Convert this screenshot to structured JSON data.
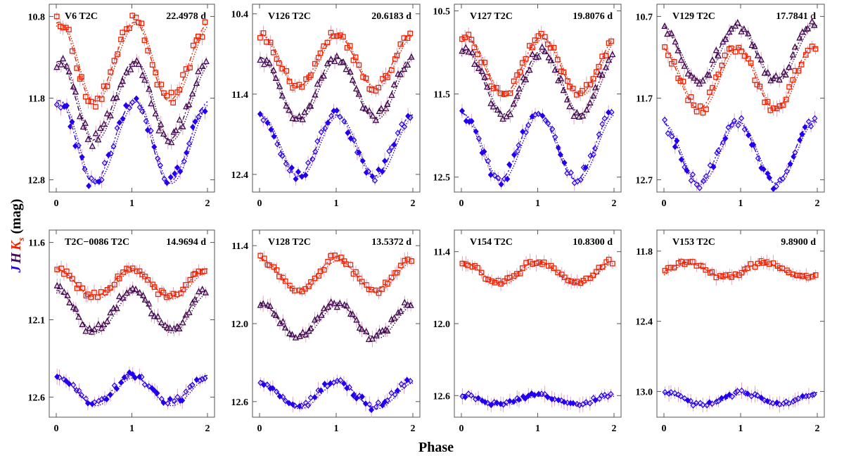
{
  "figure": {
    "xlabel": "Phase",
    "ylabel": {
      "J": "J",
      "H": "H",
      "K": "K",
      "sub": "s",
      "unit": "(mag)"
    }
  },
  "colors": {
    "J": "#2200ee",
    "H": "#3d0850",
    "K": "#ee2200",
    "frame": "#555555"
  },
  "chart_data": [
    {
      "type": "scatter",
      "name": "V6",
      "cls": "T2C",
      "period": "22.4978 d",
      "ylim": [
        10.65,
        12.95
      ],
      "yticks": [
        "10.8",
        "11.8",
        "12.8"
      ],
      "xticks": [
        "0",
        "1",
        "2"
      ],
      "series": [
        {
          "band": "K",
          "mean": 11.35,
          "amp": 0.48,
          "phi0": 0.04,
          "skew": 0.35
        },
        {
          "band": "H",
          "mean": 11.83,
          "amp": 0.48,
          "phi0": 0.04,
          "skew": 0.35
        },
        {
          "band": "J",
          "mean": 12.33,
          "amp": 0.5,
          "phi0": 0.04,
          "skew": 0.35
        }
      ]
    },
    {
      "type": "scatter",
      "name": "V126",
      "cls": "T2C",
      "period": "20.6183 d",
      "ylim": [
        10.28,
        12.62
      ],
      "yticks": [
        "10.4",
        "11.4",
        "12.4"
      ],
      "xticks": [
        "0",
        "1",
        "2"
      ],
      "series": [
        {
          "band": "K",
          "mean": 10.98,
          "amp": 0.33,
          "phi0": 0.0,
          "skew": 0.0
        },
        {
          "band": "H",
          "mean": 11.32,
          "amp": 0.38,
          "phi0": 0.0,
          "skew": 0.0
        },
        {
          "band": "J",
          "mean": 12.04,
          "amp": 0.38,
          "phi0": 0.0,
          "skew": 0.0
        }
      ]
    },
    {
      "type": "scatter",
      "name": "V127",
      "cls": "T2C",
      "period": "19.8076 d",
      "ylim": [
        10.42,
        12.68
      ],
      "yticks": [
        "10.5",
        "11.5",
        "12.5"
      ],
      "xticks": [
        "0",
        "1",
        "2"
      ],
      "series": [
        {
          "band": "K",
          "mean": 11.16,
          "amp": 0.34,
          "phi0": 0.05,
          "skew": 0.0
        },
        {
          "band": "H",
          "mean": 11.36,
          "amp": 0.38,
          "phi0": 0.05,
          "skew": 0.0
        },
        {
          "band": "J",
          "mean": 12.13,
          "amp": 0.4,
          "phi0": 0.0,
          "skew": 0.0
        }
      ]
    },
    {
      "type": "scatter",
      "name": "V129",
      "cls": "T2C",
      "period": "17.7841 d",
      "ylim": [
        10.55,
        12.85
      ],
      "yticks": [
        "10.7",
        "11.7",
        "12.7"
      ],
      "xticks": [
        "0",
        "1",
        "2"
      ],
      "series": [
        {
          "band": "H",
          "mean": 11.14,
          "amp": 0.34,
          "phi0": 0.95,
          "skew": 0.0
        },
        {
          "band": "K",
          "mean": 11.45,
          "amp": 0.38,
          "phi0": 0.95,
          "skew": 0.0
        },
        {
          "band": "J",
          "mean": 12.36,
          "amp": 0.38,
          "phi0": 0.95,
          "skew": 0.0
        }
      ]
    },
    {
      "type": "scatter",
      "name": "T2C−0086",
      "cls": "T2C",
      "period": "14.9694 d",
      "ylim": [
        11.52,
        12.73
      ],
      "yticks": [
        "11.6",
        "12.1",
        "12.6"
      ],
      "xticks": [
        "0",
        "1",
        "2"
      ],
      "series": [
        {
          "band": "K",
          "mean": 11.86,
          "amp": 0.09,
          "phi0": 0.0,
          "skew": 0.0
        },
        {
          "band": "H",
          "mean": 12.04,
          "amp": 0.13,
          "phi0": 0.0,
          "skew": 0.0
        },
        {
          "band": "J",
          "mean": 12.55,
          "amp": 0.09,
          "phi0": 0.0,
          "skew": 0.0
        }
      ]
    },
    {
      "type": "scatter",
      "name": "V128",
      "cls": "T2C",
      "period": "13.5372 d",
      "ylim": [
        11.28,
        12.72
      ],
      "yticks": [
        "11.4",
        "12.0",
        "12.6"
      ],
      "xticks": [
        "0",
        "1",
        "2"
      ],
      "series": [
        {
          "band": "K",
          "mean": 11.62,
          "amp": 0.12,
          "phi0": 0.0,
          "skew": 0.0
        },
        {
          "band": "H",
          "mean": 11.97,
          "amp": 0.13,
          "phi0": 0.0,
          "skew": 0.0
        },
        {
          "band": "J",
          "mean": 12.54,
          "amp": 0.1,
          "phi0": 0.0,
          "skew": 0.0
        }
      ]
    },
    {
      "type": "scatter",
      "name": "V154",
      "cls": "T2C",
      "period": "10.8300 d",
      "ylim": [
        11.22,
        12.78
      ],
      "yticks": [
        "11.4",
        "12.0",
        "12.6"
      ],
      "xticks": [
        "0",
        "1",
        "2"
      ],
      "series": [
        {
          "band": "K",
          "mean": 11.57,
          "amp": 0.09,
          "phi0": 0.0,
          "skew": 0.0
        },
        {
          "band": "J",
          "mean": 12.63,
          "amp": 0.04,
          "phi0": 0.0,
          "skew": 0.0
        }
      ]
    },
    {
      "type": "scatter",
      "name": "V153",
      "cls": "T2C",
      "period": "9.8900 d",
      "ylim": [
        11.62,
        13.22
      ],
      "yticks": [
        "11.8",
        "12.4",
        "13.0"
      ],
      "xticks": [
        "0",
        "1",
        "2"
      ],
      "series": [
        {
          "band": "K",
          "mean": 11.96,
          "amp": 0.06,
          "phi0": 0.3,
          "skew": 0.0
        },
        {
          "band": "J",
          "mean": 13.06,
          "amp": 0.05,
          "phi0": 0.0,
          "skew": 0.0
        }
      ]
    }
  ]
}
